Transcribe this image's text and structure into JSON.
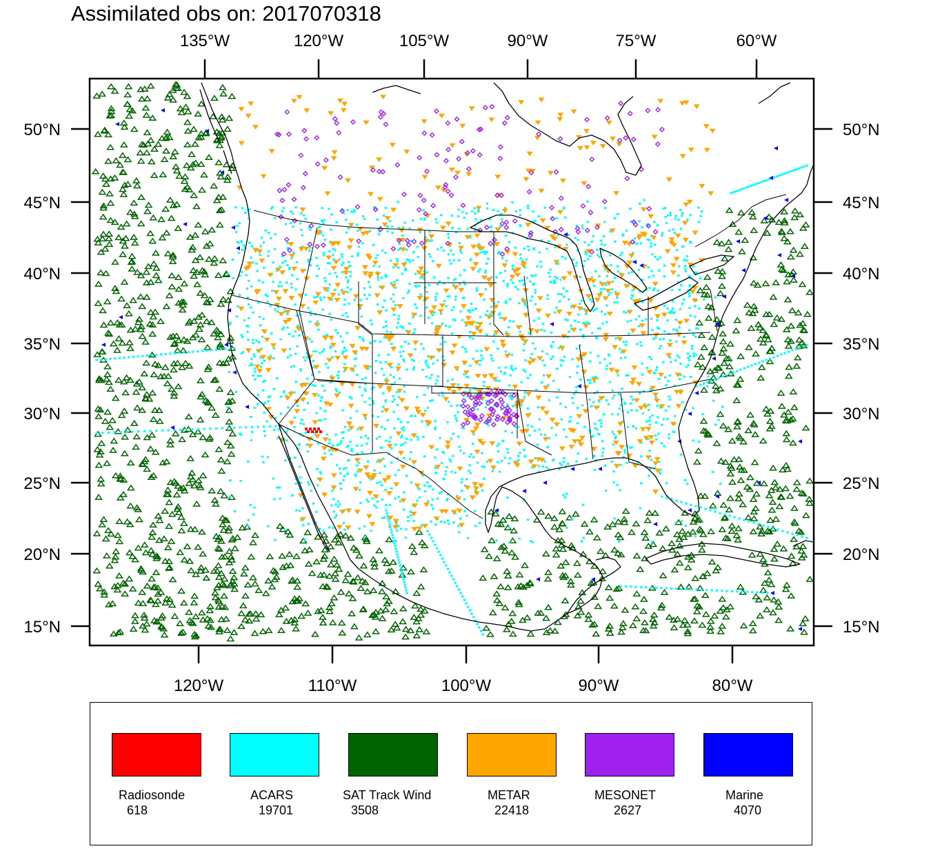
{
  "title": "Assimilated obs on: 2017070318",
  "map": {
    "top_lon_labels": [
      "135°W",
      "120°W",
      "105°W",
      "90°W",
      "75°W",
      "60°W"
    ],
    "bottom_lon_labels": [
      "120°W",
      "110°W",
      "100°W",
      "90°W",
      "80°W"
    ],
    "lat_labels": [
      "50°N",
      "45°N",
      "40°N",
      "35°N",
      "30°N",
      "25°N",
      "20°N",
      "15°N"
    ],
    "colors": {
      "Radiosonde": "#ff0000",
      "ACARS": "#00ffff",
      "SAT Track Wind": "#006400",
      "METAR": "#ffa500",
      "MESONET": "#a020f0",
      "Marine": "#0000ff"
    }
  },
  "legend": [
    {
      "name": "Radiosonde",
      "count": "618",
      "color": "#ff0000"
    },
    {
      "name": "ACARS",
      "count": "19701",
      "color": "#00ffff"
    },
    {
      "name": "SAT Track Wind",
      "count": "3508",
      "color": "#006400"
    },
    {
      "name": "METAR",
      "count": "22418",
      "color": "#ffa500"
    },
    {
      "name": "MESONET",
      "count": "2627",
      "color": "#a020f0"
    },
    {
      "name": "Marine",
      "count": "4070",
      "color": "#0000ff"
    }
  ]
}
